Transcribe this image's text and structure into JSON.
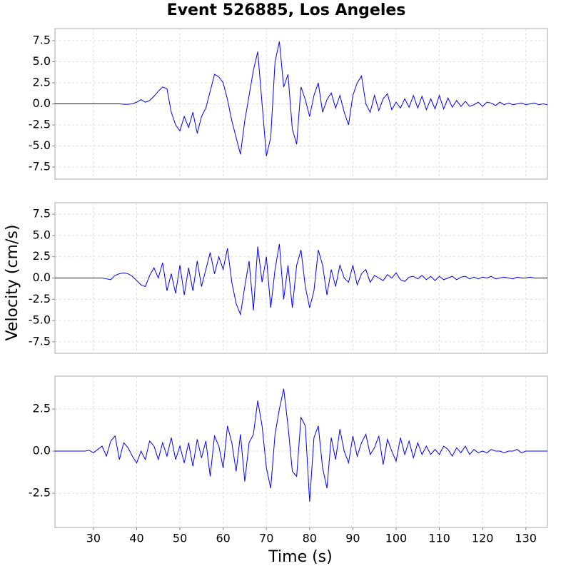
{
  "title": "Event 526885, Los Angeles",
  "x_label": "Time (s)",
  "y_label": "Velocity (cm/s)",
  "chart_data": [
    {
      "type": "line",
      "grid": true,
      "xlim": [
        21.1,
        135
      ],
      "ylim": [
        -8.94,
        8.94
      ],
      "yticks": [
        {
          "value": -7.5,
          "label": "-7.5"
        },
        {
          "value": -5,
          "label": "-5.0"
        },
        {
          "value": -2.5,
          "label": "-2.5"
        },
        {
          "value": 0,
          "label": "0.0"
        },
        {
          "value": 2.5,
          "label": "2.5"
        },
        {
          "value": 5,
          "label": "5.0"
        },
        {
          "value": 7.5,
          "label": "7.5"
        }
      ],
      "x": [
        21,
        22,
        23,
        24,
        25,
        26,
        27,
        28,
        29,
        30,
        31,
        32,
        33,
        34,
        35,
        36,
        37,
        38,
        39,
        40,
        41,
        42,
        43,
        44,
        45,
        46,
        47,
        48,
        49,
        50,
        51,
        52,
        53,
        54,
        55,
        56,
        57,
        58,
        59,
        60,
        61,
        62,
        63,
        64,
        65,
        66,
        67,
        68,
        69,
        70,
        71,
        72,
        73,
        74,
        75,
        76,
        77,
        78,
        79,
        80,
        81,
        82,
        83,
        84,
        85,
        86,
        87,
        88,
        89,
        90,
        91,
        92,
        93,
        94,
        95,
        96,
        97,
        98,
        99,
        100,
        101,
        102,
        103,
        104,
        105,
        106,
        107,
        108,
        109,
        110,
        111,
        112,
        113,
        114,
        115,
        116,
        117,
        118,
        119,
        120,
        121,
        122,
        123,
        124,
        125,
        126,
        127,
        128,
        129,
        130,
        131,
        132,
        133,
        134,
        135
      ],
      "series": [
        {
          "color": "#0000ff",
          "values": [
            0,
            0,
            0,
            0,
            0,
            0,
            0,
            0,
            0,
            0,
            0,
            0,
            0,
            0,
            0,
            0,
            -0.05,
            -0.05,
            0,
            0.2,
            0.5,
            0.2,
            0.4,
            0.9,
            1.5,
            2.0,
            1.8,
            -1.0,
            -2.5,
            -3.2,
            -1.5,
            -2.8,
            -1.0,
            -3.5,
            -1.5,
            -0.5,
            1.5,
            3.5,
            3.2,
            2.5,
            0.5,
            -2.0,
            -4.0,
            -6.0,
            -2.0,
            1.0,
            4.0,
            6.2,
            0.0,
            -6.2,
            -4.0,
            5.0,
            7.4,
            2.0,
            3.5,
            -3.0,
            -4.8,
            2.0,
            0.5,
            -1.5,
            1.0,
            2.5,
            -1.0,
            0.5,
            1.3,
            -0.5,
            1.0,
            -1.0,
            -2.5,
            1.0,
            2.5,
            3.3,
            0.0,
            -1.0,
            1.0,
            -0.8,
            0.6,
            1.2,
            -0.7,
            0.2,
            -0.5,
            0.6,
            -0.4,
            1.0,
            -0.5,
            0.9,
            -0.7,
            0.6,
            -0.6,
            1.0,
            -0.6,
            0.7,
            -0.4,
            0.4,
            -0.3,
            0.3,
            -0.3,
            -0.1,
            0.2,
            -0.3,
            0.2,
            0.1,
            -0.2,
            0.2,
            -0.1,
            0.1,
            -0.1,
            0.0,
            0.1,
            -0.1,
            0.0,
            0.1,
            -0.1,
            0.0,
            -0.1
          ]
        }
      ]
    },
    {
      "type": "line",
      "grid": true,
      "xlim": [
        21.1,
        135
      ],
      "ylim": [
        -8.85,
        8.85
      ],
      "yticks": [
        {
          "value": -7.5,
          "label": "-7.5"
        },
        {
          "value": -5,
          "label": "-5.0"
        },
        {
          "value": -2.5,
          "label": "-2.5"
        },
        {
          "value": 0,
          "label": "0.0"
        },
        {
          "value": 2.5,
          "label": "2.5"
        },
        {
          "value": 5,
          "label": "5.0"
        },
        {
          "value": 7.5,
          "label": "7.5"
        }
      ],
      "x": [
        21,
        22,
        23,
        24,
        25,
        26,
        27,
        28,
        29,
        30,
        31,
        32,
        33,
        34,
        35,
        36,
        37,
        38,
        39,
        40,
        41,
        42,
        43,
        44,
        45,
        46,
        47,
        48,
        49,
        50,
        51,
        52,
        53,
        54,
        55,
        56,
        57,
        58,
        59,
        60,
        61,
        62,
        63,
        64,
        65,
        66,
        67,
        68,
        69,
        70,
        71,
        72,
        73,
        74,
        75,
        76,
        77,
        78,
        79,
        80,
        81,
        82,
        83,
        84,
        85,
        86,
        87,
        88,
        89,
        90,
        91,
        92,
        93,
        94,
        95,
        96,
        97,
        98,
        99,
        100,
        101,
        102,
        103,
        104,
        105,
        106,
        107,
        108,
        109,
        110,
        111,
        112,
        113,
        114,
        115,
        116,
        117,
        118,
        119,
        120,
        121,
        122,
        123,
        124,
        125,
        126,
        127,
        128,
        129,
        130,
        131,
        132,
        133,
        134,
        135
      ],
      "series": [
        {
          "color": "#0000ff",
          "values": [
            0,
            0,
            0,
            0,
            0,
            0,
            0,
            0,
            0,
            0,
            0,
            0,
            -0.1,
            -0.2,
            0.3,
            0.5,
            0.6,
            0.5,
            0.2,
            -0.3,
            -0.8,
            -1.0,
            0.3,
            1.2,
            0.0,
            1.8,
            -1.5,
            0.5,
            -1.8,
            1.5,
            -2.0,
            1.2,
            -1.5,
            2.0,
            -1.0,
            1.0,
            3.0,
            0.5,
            2.5,
            1.0,
            3.5,
            -0.5,
            -3.0,
            -4.3,
            -1.0,
            2.0,
            -3.8,
            3.7,
            -0.5,
            2.5,
            -3.5,
            1.0,
            4.0,
            -2.5,
            1.5,
            -3.5,
            1.5,
            3.3,
            -1.0,
            -3.5,
            -1.5,
            3.3,
            1.5,
            -2.0,
            1.0,
            -1.0,
            1.5,
            0.0,
            -0.5,
            1.5,
            -0.8,
            0.5,
            1.0,
            -0.5,
            0.3,
            0.0,
            -0.3,
            0.4,
            0.0,
            0.6,
            -0.2,
            -0.4,
            0.1,
            0.2,
            -0.1,
            0.3,
            -0.2,
            0.2,
            -0.3,
            0.2,
            -0.2,
            0.0,
            0.2,
            -0.2,
            0.1,
            0.2,
            -0.1,
            0.1,
            -0.1,
            0.1,
            0.0,
            0.2,
            -0.1,
            0.0,
            0.1,
            0.0,
            -0.1,
            0.1,
            0.0,
            0.0,
            0.1,
            0.0,
            0.0,
            0.0,
            0.0
          ]
        }
      ]
    },
    {
      "type": "line",
      "grid": true,
      "xlim": [
        21.1,
        135
      ],
      "ylim": [
        -4.53,
        4.45
      ],
      "yticks": [
        {
          "value": -2.5,
          "label": "-2.5"
        },
        {
          "value": 0,
          "label": "0.0"
        },
        {
          "value": 2.5,
          "label": "2.5"
        }
      ],
      "xticks": [
        30,
        40,
        50,
        60,
        70,
        80,
        90,
        100,
        110,
        120,
        130
      ],
      "x": [
        21,
        22,
        23,
        24,
        25,
        26,
        27,
        28,
        29,
        30,
        31,
        32,
        33,
        34,
        35,
        36,
        37,
        38,
        39,
        40,
        41,
        42,
        43,
        44,
        45,
        46,
        47,
        48,
        49,
        50,
        51,
        52,
        53,
        54,
        55,
        56,
        57,
        58,
        59,
        60,
        61,
        62,
        63,
        64,
        65,
        66,
        67,
        68,
        69,
        70,
        71,
        72,
        73,
        74,
        75,
        76,
        77,
        78,
        79,
        80,
        81,
        82,
        83,
        84,
        85,
        86,
        87,
        88,
        89,
        90,
        91,
        92,
        93,
        94,
        95,
        96,
        97,
        98,
        99,
        100,
        101,
        102,
        103,
        104,
        105,
        106,
        107,
        108,
        109,
        110,
        111,
        112,
        113,
        114,
        115,
        116,
        117,
        118,
        119,
        120,
        121,
        122,
        123,
        124,
        125,
        126,
        127,
        128,
        129,
        130,
        131,
        132,
        133,
        134,
        135
      ],
      "series": [
        {
          "color": "#0000ff",
          "values": [
            0,
            0,
            0,
            0,
            0,
            0,
            0,
            0,
            0.05,
            -0.1,
            0.1,
            0.3,
            -0.3,
            0.6,
            0.9,
            -0.5,
            0.5,
            0.2,
            -0.3,
            -0.7,
            0.0,
            -0.5,
            0.6,
            0.3,
            -0.5,
            0.5,
            -0.3,
            0.8,
            -0.5,
            0.3,
            -0.7,
            0.5,
            -0.9,
            0.7,
            -0.4,
            0.6,
            -1.5,
            0.9,
            0.3,
            -1.0,
            1.5,
            0.5,
            -1.2,
            1.0,
            -1.8,
            0.5,
            1.0,
            3.0,
            1.5,
            -1.0,
            -2.2,
            1.0,
            2.5,
            3.7,
            1.5,
            -1.2,
            -1.5,
            2.0,
            1.5,
            -3.0,
            0.8,
            1.5,
            -1.0,
            -2.2,
            0.8,
            -0.5,
            1.3,
            0.0,
            -0.7,
            0.9,
            -0.3,
            0.5,
            1.0,
            -0.2,
            0.2,
            0.9,
            -0.8,
            0.7,
            0.0,
            -0.6,
            0.8,
            -0.2,
            0.6,
            -0.4,
            0.5,
            -0.2,
            0.3,
            -0.2,
            0.1,
            -0.2,
            0.3,
            0.1,
            -0.3,
            0.2,
            -0.1,
            0.3,
            -0.2,
            0.1,
            -0.1,
            0.0,
            -0.1,
            0.1,
            0.0,
            0.0,
            -0.1,
            0.0,
            0.0,
            0.1,
            -0.1,
            0.0,
            0.0,
            0.0,
            0.0,
            0.0,
            0.0
          ]
        }
      ]
    }
  ]
}
